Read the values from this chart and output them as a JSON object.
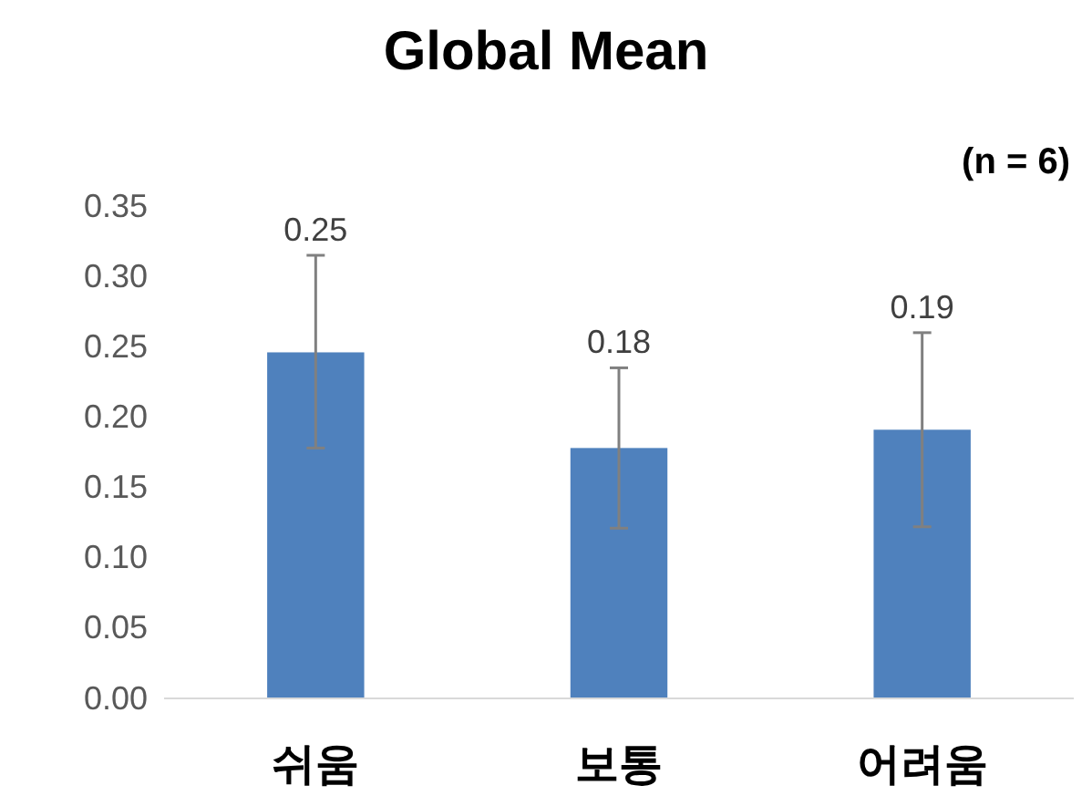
{
  "chart_data": {
    "type": "bar",
    "title": "Global Mean",
    "annotations": [
      "(n = 6)"
    ],
    "categories": [
      "쉬움",
      "보통",
      "어려움"
    ],
    "values": [
      0.246,
      0.178,
      0.191
    ],
    "errors": [
      [
        0.178,
        0.315
      ],
      [
        0.121,
        0.235
      ],
      [
        0.122,
        0.26
      ]
    ],
    "value_labels": [
      "0.25",
      "0.18",
      "0.19"
    ],
    "color": "#4f81bd",
    "ylim": [
      0,
      0.35
    ],
    "yticks": [
      {
        "value": 0,
        "label": "0.00"
      },
      {
        "value": 0.05,
        "label": "0.05"
      },
      {
        "value": 0.1,
        "label": "0.10"
      },
      {
        "value": 0.15,
        "label": "0.15"
      },
      {
        "value": 0.2,
        "label": "0.20"
      },
      {
        "value": 0.25,
        "label": "0.25"
      },
      {
        "value": 0.3,
        "label": "0.30"
      },
      {
        "value": 0.35,
        "label": "0.35"
      }
    ],
    "grid": false
  }
}
